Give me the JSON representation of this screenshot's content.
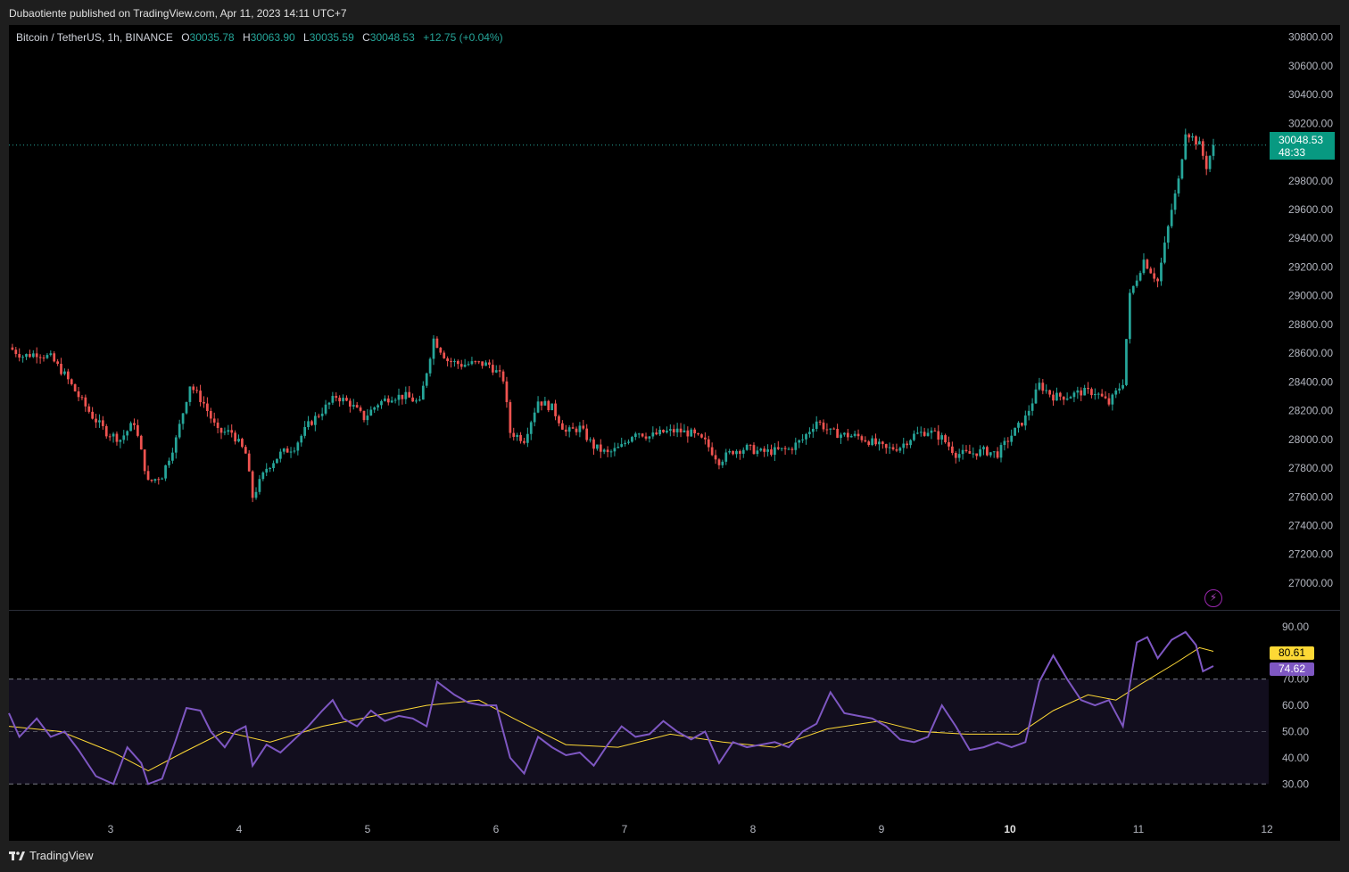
{
  "header": {
    "published_text": "Dubaotiente published on TradingView.com, Apr 11, 2023 14:11 UTC+7"
  },
  "legend": {
    "symbol": "Bitcoin / TetherUS, 1h, BINANCE",
    "o_label": "O",
    "o_value": "30035.78",
    "h_label": "H",
    "h_value": "30063.90",
    "l_label": "L",
    "l_value": "30035.59",
    "c_label": "C",
    "c_value": "30048.53",
    "change": "+12.75 (+0.04%)"
  },
  "last_price": {
    "price": "30048.53",
    "countdown": "48:33"
  },
  "rsi_tags": {
    "ma": "80.61",
    "rsi": "74.62"
  },
  "footer": {
    "brand": "TradingView"
  },
  "colors": {
    "up": "#26a69a",
    "down": "#ef5350",
    "rsi": "#7e57c2",
    "rsi_ma": "#fdd835",
    "background": "#000000"
  },
  "chart_data": {
    "type": "candlestick",
    "symbol": "Bitcoin / TetherUS",
    "interval": "1h",
    "price_axis": {
      "ticks": [
        "30800.00",
        "30600.00",
        "30400.00",
        "30200.00",
        "29800.00",
        "29600.00",
        "29400.00",
        "29200.00",
        "29000.00",
        "28800.00",
        "28600.00",
        "28400.00",
        "28200.00",
        "28000.00",
        "27800.00",
        "27600.00",
        "27400.00",
        "27200.00",
        "27000.00"
      ],
      "range": [
        26950,
        30860
      ]
    },
    "time_axis": {
      "ticks": [
        "3",
        "4",
        "5",
        "6",
        "7",
        "8",
        "9",
        "10",
        "11",
        "12"
      ]
    },
    "price_series": [
      {
        "t": 0,
        "c": 28640
      },
      {
        "t": 4,
        "c": 28580
      },
      {
        "t": 8,
        "c": 28600
      },
      {
        "t": 12,
        "c": 28570
      },
      {
        "t": 16,
        "c": 28450
      },
      {
        "t": 20,
        "c": 28300
      },
      {
        "t": 24,
        "c": 28160
      },
      {
        "t": 28,
        "c": 28050
      },
      {
        "t": 32,
        "c": 28000
      },
      {
        "t": 36,
        "c": 28120
      },
      {
        "t": 40,
        "c": 27700
      },
      {
        "t": 44,
        "c": 27750
      },
      {
        "t": 48,
        "c": 28000
      },
      {
        "t": 52,
        "c": 28380
      },
      {
        "t": 56,
        "c": 28250
      },
      {
        "t": 60,
        "c": 28050
      },
      {
        "t": 64,
        "c": 28050
      },
      {
        "t": 68,
        "c": 27900
      },
      {
        "t": 70,
        "c": 27600
      },
      {
        "t": 74,
        "c": 27800
      },
      {
        "t": 78,
        "c": 27900
      },
      {
        "t": 82,
        "c": 27950
      },
      {
        "t": 86,
        "c": 28100
      },
      {
        "t": 90,
        "c": 28200
      },
      {
        "t": 94,
        "c": 28300
      },
      {
        "t": 98,
        "c": 28250
      },
      {
        "t": 102,
        "c": 28150
      },
      {
        "t": 106,
        "c": 28250
      },
      {
        "t": 110,
        "c": 28300
      },
      {
        "t": 114,
        "c": 28300
      },
      {
        "t": 118,
        "c": 28250
      },
      {
        "t": 122,
        "c": 28700
      },
      {
        "t": 126,
        "c": 28550
      },
      {
        "t": 130,
        "c": 28520
      },
      {
        "t": 134,
        "c": 28530
      },
      {
        "t": 138,
        "c": 28520
      },
      {
        "t": 142,
        "c": 28420
      },
      {
        "t": 144,
        "c": 28050
      },
      {
        "t": 148,
        "c": 28000
      },
      {
        "t": 152,
        "c": 28270
      },
      {
        "t": 156,
        "c": 28220
      },
      {
        "t": 160,
        "c": 28050
      },
      {
        "t": 164,
        "c": 28080
      },
      {
        "t": 168,
        "c": 27950
      },
      {
        "t": 172,
        "c": 27900
      },
      {
        "t": 176,
        "c": 27950
      },
      {
        "t": 180,
        "c": 28060
      },
      {
        "t": 184,
        "c": 28020
      },
      {
        "t": 188,
        "c": 28050
      },
      {
        "t": 192,
        "c": 28060
      },
      {
        "t": 196,
        "c": 28040
      },
      {
        "t": 200,
        "c": 27980
      },
      {
        "t": 204,
        "c": 27850
      },
      {
        "t": 208,
        "c": 27920
      },
      {
        "t": 212,
        "c": 27940
      },
      {
        "t": 216,
        "c": 27910
      },
      {
        "t": 220,
        "c": 27920
      },
      {
        "t": 224,
        "c": 27930
      },
      {
        "t": 228,
        "c": 28000
      },
      {
        "t": 232,
        "c": 28130
      },
      {
        "t": 236,
        "c": 28050
      },
      {
        "t": 240,
        "c": 28030
      },
      {
        "t": 244,
        "c": 28020
      },
      {
        "t": 248,
        "c": 27980
      },
      {
        "t": 252,
        "c": 27930
      },
      {
        "t": 256,
        "c": 27950
      },
      {
        "t": 260,
        "c": 28030
      },
      {
        "t": 264,
        "c": 28060
      },
      {
        "t": 268,
        "c": 28010
      },
      {
        "t": 272,
        "c": 27900
      },
      {
        "t": 276,
        "c": 27900
      },
      {
        "t": 280,
        "c": 27920
      },
      {
        "t": 284,
        "c": 27900
      },
      {
        "t": 288,
        "c": 28030
      },
      {
        "t": 292,
        "c": 28150
      },
      {
        "t": 296,
        "c": 28380
      },
      {
        "t": 300,
        "c": 28300
      },
      {
        "t": 304,
        "c": 28300
      },
      {
        "t": 308,
        "c": 28330
      },
      {
        "t": 312,
        "c": 28330
      },
      {
        "t": 316,
        "c": 28250
      },
      {
        "t": 320,
        "c": 28400
      },
      {
        "t": 322,
        "c": 29000
      },
      {
        "t": 326,
        "c": 29250
      },
      {
        "t": 330,
        "c": 29100
      },
      {
        "t": 334,
        "c": 29600
      },
      {
        "t": 336,
        "c": 29800
      },
      {
        "t": 338,
        "c": 30150
      },
      {
        "t": 340,
        "c": 30100
      },
      {
        "t": 342,
        "c": 30050
      },
      {
        "t": 344,
        "c": 29900
      },
      {
        "t": 346,
        "c": 30048.53
      }
    ],
    "rsi_axis": {
      "ticks": [
        "90.00",
        "70.00",
        "60.00",
        "50.00",
        "40.00",
        "30.00"
      ],
      "range": [
        25,
        92
      ],
      "band": [
        30,
        70
      ],
      "midline": 50
    },
    "rsi_series": [
      {
        "t": 0,
        "v": 57
      },
      {
        "t": 3,
        "v": 48
      },
      {
        "t": 8,
        "v": 55
      },
      {
        "t": 12,
        "v": 48
      },
      {
        "t": 16,
        "v": 50
      },
      {
        "t": 20,
        "v": 43
      },
      {
        "t": 25,
        "v": 33
      },
      {
        "t": 30,
        "v": 30
      },
      {
        "t": 34,
        "v": 44
      },
      {
        "t": 38,
        "v": 38
      },
      {
        "t": 40,
        "v": 30
      },
      {
        "t": 44,
        "v": 32
      },
      {
        "t": 48,
        "v": 47
      },
      {
        "t": 51,
        "v": 59
      },
      {
        "t": 55,
        "v": 58
      },
      {
        "t": 58,
        "v": 50
      },
      {
        "t": 62,
        "v": 44
      },
      {
        "t": 65,
        "v": 50
      },
      {
        "t": 68,
        "v": 52
      },
      {
        "t": 70,
        "v": 37
      },
      {
        "t": 74,
        "v": 45
      },
      {
        "t": 78,
        "v": 42
      },
      {
        "t": 82,
        "v": 47
      },
      {
        "t": 86,
        "v": 52
      },
      {
        "t": 90,
        "v": 58
      },
      {
        "t": 93,
        "v": 62
      },
      {
        "t": 96,
        "v": 55
      },
      {
        "t": 100,
        "v": 52
      },
      {
        "t": 104,
        "v": 58
      },
      {
        "t": 108,
        "v": 54
      },
      {
        "t": 112,
        "v": 56
      },
      {
        "t": 116,
        "v": 55
      },
      {
        "t": 120,
        "v": 52
      },
      {
        "t": 123,
        "v": 69
      },
      {
        "t": 128,
        "v": 64
      },
      {
        "t": 132,
        "v": 61
      },
      {
        "t": 136,
        "v": 60
      },
      {
        "t": 140,
        "v": 60
      },
      {
        "t": 144,
        "v": 40
      },
      {
        "t": 148,
        "v": 34
      },
      {
        "t": 152,
        "v": 48
      },
      {
        "t": 156,
        "v": 44
      },
      {
        "t": 160,
        "v": 41
      },
      {
        "t": 164,
        "v": 42
      },
      {
        "t": 168,
        "v": 37
      },
      {
        "t": 172,
        "v": 45
      },
      {
        "t": 176,
        "v": 52
      },
      {
        "t": 180,
        "v": 48
      },
      {
        "t": 184,
        "v": 49
      },
      {
        "t": 188,
        "v": 54
      },
      {
        "t": 192,
        "v": 50
      },
      {
        "t": 196,
        "v": 47
      },
      {
        "t": 200,
        "v": 50
      },
      {
        "t": 204,
        "v": 38
      },
      {
        "t": 208,
        "v": 46
      },
      {
        "t": 212,
        "v": 44
      },
      {
        "t": 216,
        "v": 45
      },
      {
        "t": 220,
        "v": 46
      },
      {
        "t": 224,
        "v": 44
      },
      {
        "t": 228,
        "v": 50
      },
      {
        "t": 232,
        "v": 53
      },
      {
        "t": 236,
        "v": 65
      },
      {
        "t": 240,
        "v": 57
      },
      {
        "t": 244,
        "v": 56
      },
      {
        "t": 248,
        "v": 55
      },
      {
        "t": 252,
        "v": 52
      },
      {
        "t": 256,
        "v": 47
      },
      {
        "t": 260,
        "v": 46
      },
      {
        "t": 264,
        "v": 48
      },
      {
        "t": 268,
        "v": 60
      },
      {
        "t": 272,
        "v": 52
      },
      {
        "t": 276,
        "v": 43
      },
      {
        "t": 280,
        "v": 44
      },
      {
        "t": 284,
        "v": 46
      },
      {
        "t": 288,
        "v": 44
      },
      {
        "t": 292,
        "v": 46
      },
      {
        "t": 296,
        "v": 69
      },
      {
        "t": 300,
        "v": 79
      },
      {
        "t": 304,
        "v": 70
      },
      {
        "t": 308,
        "v": 62
      },
      {
        "t": 312,
        "v": 60
      },
      {
        "t": 316,
        "v": 62
      },
      {
        "t": 320,
        "v": 52
      },
      {
        "t": 324,
        "v": 84
      },
      {
        "t": 327,
        "v": 86
      },
      {
        "t": 330,
        "v": 78
      },
      {
        "t": 334,
        "v": 85
      },
      {
        "t": 338,
        "v": 88
      },
      {
        "t": 341,
        "v": 83
      },
      {
        "t": 343,
        "v": 73
      },
      {
        "t": 346,
        "v": 75
      }
    ],
    "rsi_ma_series": [
      {
        "t": 0,
        "v": 52
      },
      {
        "t": 15,
        "v": 50
      },
      {
        "t": 30,
        "v": 42
      },
      {
        "t": 40,
        "v": 35
      },
      {
        "t": 50,
        "v": 42
      },
      {
        "t": 62,
        "v": 50
      },
      {
        "t": 75,
        "v": 46
      },
      {
        "t": 90,
        "v": 52
      },
      {
        "t": 105,
        "v": 56
      },
      {
        "t": 120,
        "v": 60
      },
      {
        "t": 135,
        "v": 62
      },
      {
        "t": 145,
        "v": 55
      },
      {
        "t": 160,
        "v": 45
      },
      {
        "t": 175,
        "v": 44
      },
      {
        "t": 190,
        "v": 49
      },
      {
        "t": 205,
        "v": 46
      },
      {
        "t": 220,
        "v": 44
      },
      {
        "t": 235,
        "v": 51
      },
      {
        "t": 250,
        "v": 54
      },
      {
        "t": 262,
        "v": 50
      },
      {
        "t": 275,
        "v": 49
      },
      {
        "t": 290,
        "v": 49
      },
      {
        "t": 300,
        "v": 58
      },
      {
        "t": 310,
        "v": 64
      },
      {
        "t": 318,
        "v": 62
      },
      {
        "t": 325,
        "v": 68
      },
      {
        "t": 335,
        "v": 76
      },
      {
        "t": 342,
        "v": 82
      },
      {
        "t": 346,
        "v": 80.61
      }
    ]
  }
}
